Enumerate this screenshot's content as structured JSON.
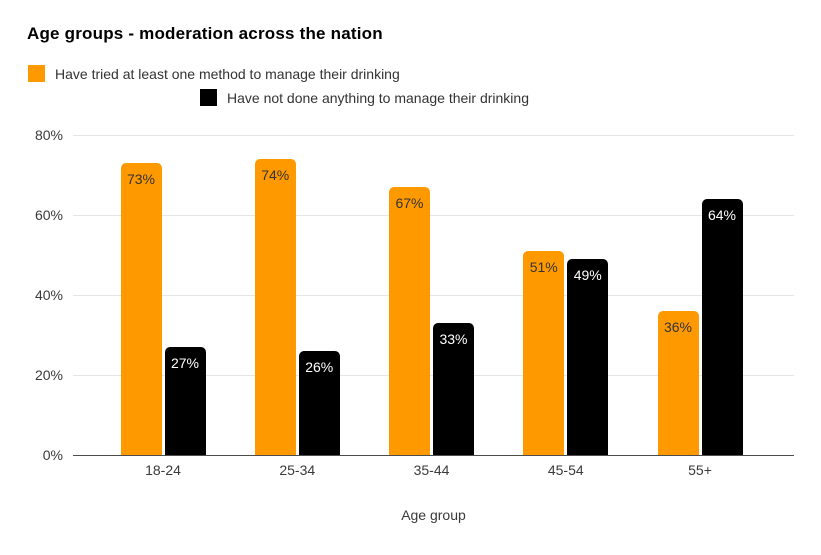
{
  "chart_data": {
    "type": "bar",
    "title": "Age groups - moderation across the nation",
    "xlabel": "Age group",
    "ylabel": "",
    "categories": [
      "18-24",
      "25-34",
      "35-44",
      "45-54",
      "55+"
    ],
    "series": [
      {
        "name": "Have tried at least one method to manage their drinking",
        "color": "#ff9900",
        "label_color": "#333333",
        "values": [
          73,
          74,
          67,
          51,
          36
        ],
        "labels": [
          "73%",
          "74%",
          "67%",
          "51%",
          "36%"
        ]
      },
      {
        "name": "Have not done anything to manage their drinking",
        "color": "#000000",
        "label_color": "#ffffff",
        "values": [
          27,
          26,
          33,
          49,
          64
        ],
        "labels": [
          "27%",
          "26%",
          "33%",
          "49%",
          "64%"
        ]
      }
    ],
    "ylim": [
      0,
      80
    ],
    "yticks": [
      {
        "label": "0%",
        "value": 0
      },
      {
        "label": "20%",
        "value": 20
      },
      {
        "label": "40%",
        "value": 40
      },
      {
        "label": "60%",
        "value": 60
      },
      {
        "label": "80%",
        "value": 80
      }
    ],
    "grid": true,
    "legend_position": "top-left-two-rows"
  },
  "colors": {
    "background": "#ffffff",
    "grid": "#e6e6e6",
    "axis": "#4d4d4d",
    "tick_text": "#3a3a3a",
    "title_text": "#000000",
    "legend_text": "#333333"
  }
}
